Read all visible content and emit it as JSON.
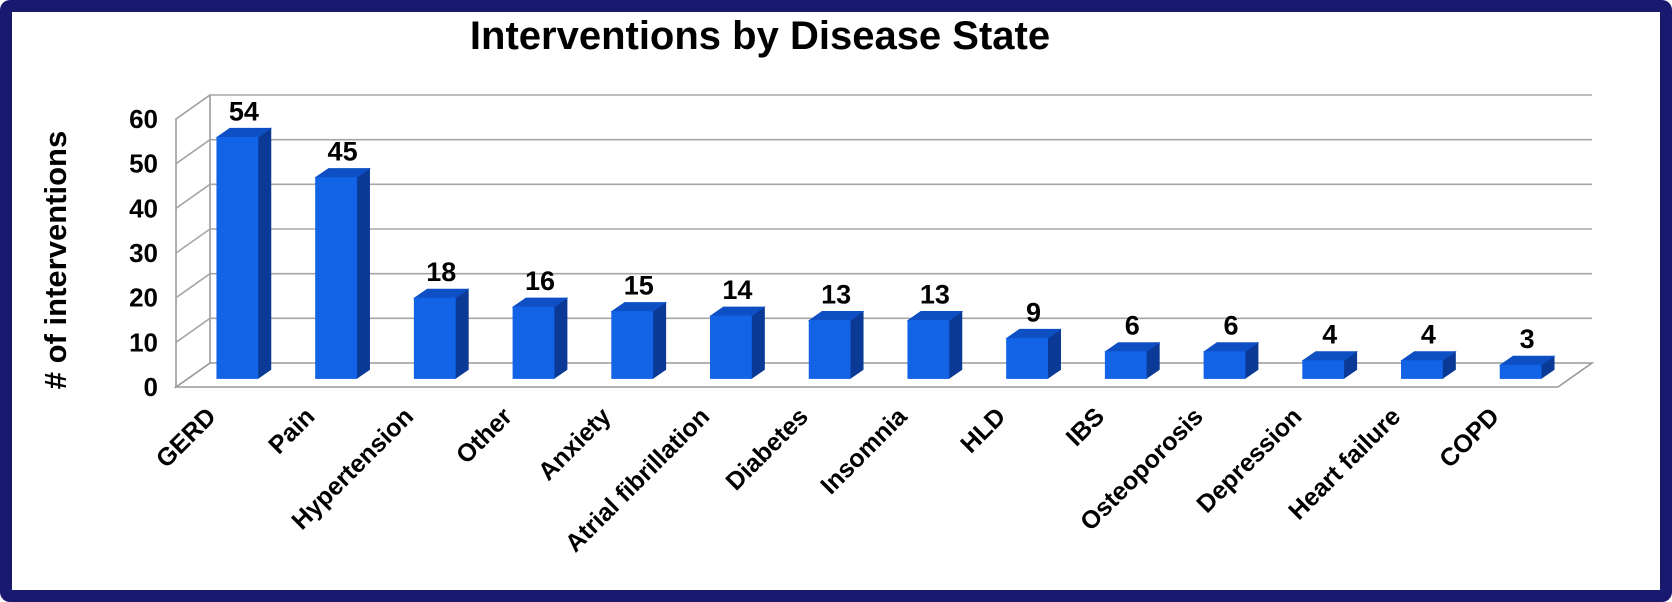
{
  "frame": {
    "border_color": "#191970",
    "background": "#FFFFFF"
  },
  "chart_data": {
    "type": "bar",
    "projection": "3d-column",
    "title": "Interventions by Disease State",
    "ylabel": "# of interventions",
    "xlabel": "",
    "categories": [
      "GERD",
      "Pain",
      "Hypertension",
      "Other",
      "Anxiety",
      "Atrial fibrillation",
      "Diabetes",
      "Insomnia",
      "HLD",
      "IBS",
      "Osteoporosis",
      "Depression",
      "Heart failure",
      "COPD"
    ],
    "values": [
      54,
      45,
      18,
      16,
      15,
      14,
      13,
      13,
      9,
      6,
      6,
      4,
      4,
      3
    ],
    "value_labels_shown": true,
    "yticks": [
      0,
      10,
      20,
      30,
      40,
      50,
      60
    ],
    "ylim": [
      0,
      60
    ],
    "grid": true,
    "legend_position": "none",
    "category_label_rotation_deg": 45,
    "colors": {
      "bar_front": "#1263E6",
      "bar_side": "#0A3A96",
      "bar_top": "#0E4FC4",
      "gridline": "#A6A6A6",
      "wall_outline": "#9A9A9A",
      "text": "#000000",
      "frame_border": "#191970"
    }
  }
}
